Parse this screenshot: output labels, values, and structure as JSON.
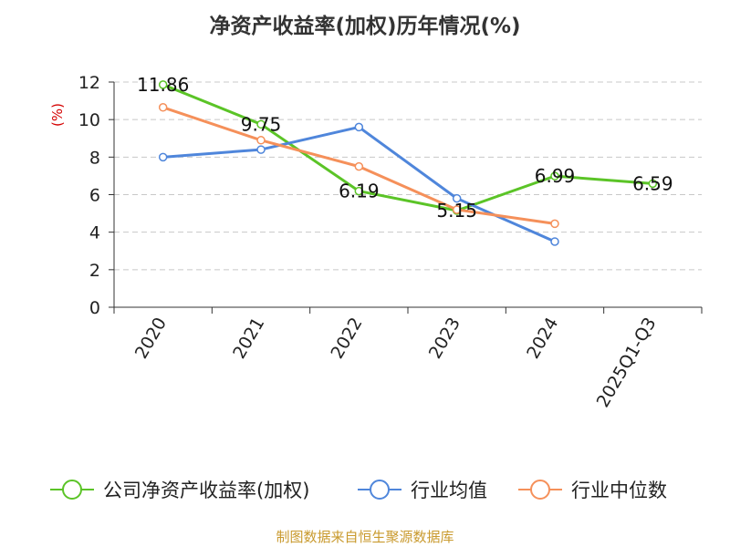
{
  "chart_data": {
    "type": "line",
    "title": "净资产收益率(加权)历年情况(%)",
    "ylabel": "(%)",
    "xlabel": "",
    "categories": [
      "2020",
      "2021",
      "2022",
      "2023",
      "2024",
      "2025Q1-Q3"
    ],
    "ylim": [
      0,
      12
    ],
    "yticks": [
      0,
      2,
      4,
      6,
      8,
      10,
      12
    ],
    "grid": true,
    "legend_position": "bottom",
    "series": [
      {
        "name": "公司净资产收益率(加权)",
        "color": "#5bc427",
        "values": [
          11.86,
          9.75,
          6.19,
          5.15,
          6.99,
          6.59
        ],
        "labels": [
          "11.86",
          "9.75",
          "6.19",
          "5.15",
          "6.99",
          "6.59"
        ]
      },
      {
        "name": "行业均值",
        "color": "#4f86db",
        "values": [
          8.0,
          8.4,
          9.6,
          5.8,
          3.5,
          null
        ]
      },
      {
        "name": "行业中位数",
        "color": "#f5905a",
        "values": [
          10.65,
          8.9,
          7.5,
          5.2,
          4.45,
          null
        ]
      }
    ],
    "source": "制图数据来自恒生聚源数据库",
    "unit_color": "#d40000"
  }
}
